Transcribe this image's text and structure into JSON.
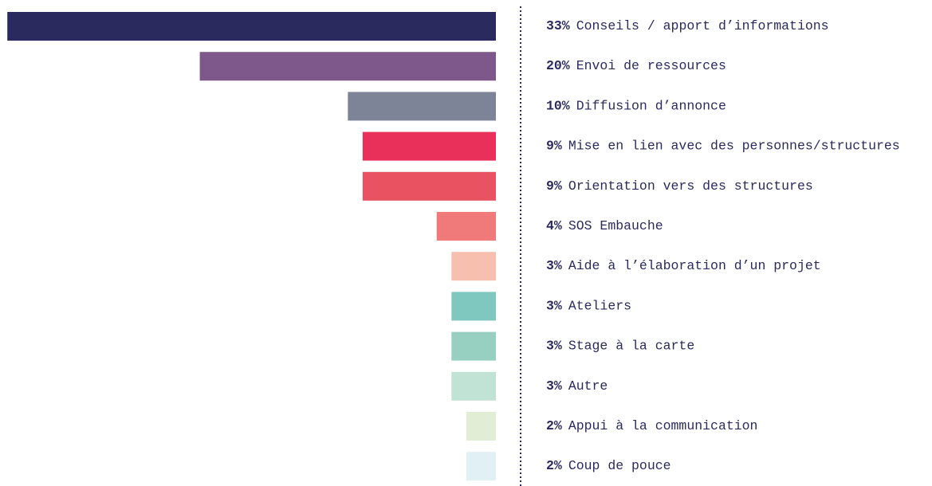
{
  "chart_data": {
    "type": "bar",
    "categories": [
      "Conseils / apport d’informations",
      "Envoi de ressources",
      "Diffusion d’annonce",
      "Mise en lien avec des personnes/structures",
      "Orientation vers des structures",
      "SOS Embauche",
      "Aide à l’élaboration d’un projet",
      "Ateliers",
      "Stage à la carte",
      "Autre",
      "Appui à la communication",
      "Coup de pouce"
    ],
    "values": [
      33,
      20,
      10,
      9,
      9,
      4,
      3,
      3,
      3,
      3,
      2,
      2
    ],
    "value_labels": [
      "33%",
      "20%",
      "10%",
      "9%",
      "9%",
      "4%",
      "3%",
      "3%",
      "3%",
      "3%",
      "2%",
      "2%"
    ],
    "colors": [
      "#2b2a5f",
      "#7e588b",
      "#7e8498",
      "#e8305a",
      "#e85261",
      "#f07a7a",
      "#f7bfae",
      "#7fc8c0",
      "#97d0c0",
      "#c1e3d6",
      "#e1eed5",
      "#e1f0f4"
    ]
  }
}
